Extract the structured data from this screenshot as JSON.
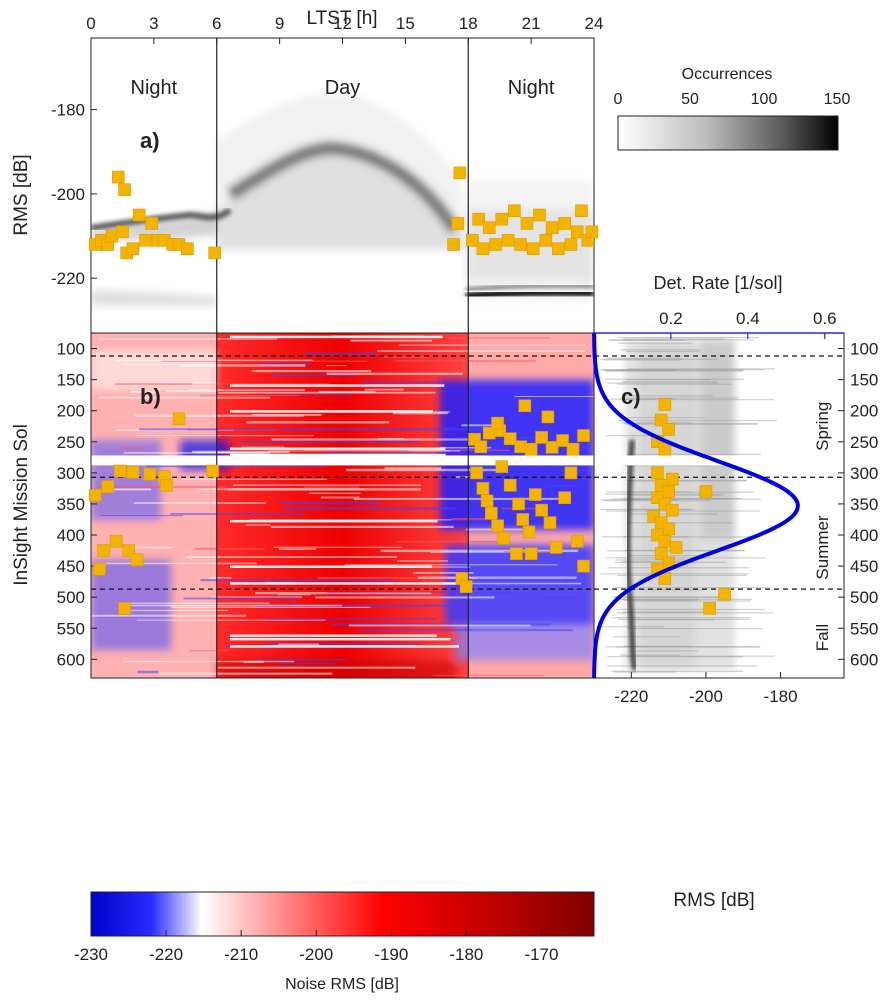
{
  "chart_data": [
    {
      "id": "a",
      "type": "heatmap",
      "panel_label": "a)",
      "xlabel": "LTST [h]",
      "ylabel": "RMS [dB]",
      "xlim": [
        0,
        24
      ],
      "ylim": [
        -233,
        -163
      ],
      "x_ticks": [
        0,
        3,
        6,
        9,
        12,
        15,
        18,
        21,
        24
      ],
      "y_ticks": [
        -180,
        -200,
        -220
      ],
      "region_dividers_h": [
        6,
        18
      ],
      "region_labels": [
        {
          "text": "Night",
          "x": 3
        },
        {
          "text": "Day",
          "x": 12
        },
        {
          "text": "Night",
          "x": 21
        }
      ],
      "event_marker_color": "#f2b400",
      "events": [
        [
          0.2,
          -212
        ],
        [
          0.5,
          -211
        ],
        [
          0.8,
          -212
        ],
        [
          1.0,
          -210
        ],
        [
          1.3,
          -196
        ],
        [
          1.5,
          -209
        ],
        [
          1.6,
          -199
        ],
        [
          1.7,
          -214
        ],
        [
          2.0,
          -213
        ],
        [
          2.3,
          -205
        ],
        [
          2.6,
          -211
        ],
        [
          2.9,
          -207
        ],
        [
          3.2,
          -211
        ],
        [
          3.5,
          -211
        ],
        [
          3.9,
          -212
        ],
        [
          4.2,
          -212
        ],
        [
          4.6,
          -213
        ],
        [
          5.9,
          -214
        ],
        [
          17.3,
          -212
        ],
        [
          17.5,
          -207
        ],
        [
          17.6,
          -195
        ],
        [
          18.2,
          -211
        ],
        [
          18.5,
          -206
        ],
        [
          18.7,
          -213
        ],
        [
          19.0,
          -208
        ],
        [
          19.3,
          -212
        ],
        [
          19.6,
          -206
        ],
        [
          19.9,
          -211
        ],
        [
          20.2,
          -204
        ],
        [
          20.5,
          -212
        ],
        [
          20.8,
          -207
        ],
        [
          21.1,
          -213
        ],
        [
          21.4,
          -205
        ],
        [
          21.7,
          -211
        ],
        [
          22.0,
          -208
        ],
        [
          22.3,
          -213
        ],
        [
          22.6,
          -207
        ],
        [
          22.9,
          -212
        ],
        [
          23.2,
          -209
        ],
        [
          23.4,
          -204
        ],
        [
          23.7,
          -211
        ],
        [
          23.9,
          -209
        ]
      ]
    },
    {
      "id": "b",
      "type": "heatmap",
      "panel_label": "b)",
      "ylabel": "InSight Mission Sol",
      "xlim": [
        0,
        24
      ],
      "ylim": [
        75,
        630
      ],
      "y_ticks": [
        100,
        150,
        200,
        250,
        300,
        350,
        400,
        450,
        500,
        550,
        600
      ],
      "season_boundaries": [
        112,
        307,
        487
      ],
      "data_gap": [
        272,
        288
      ],
      "colorbar": {
        "label": "Noise RMS [dB]",
        "range": [
          -230,
          -163
        ],
        "ticks": [
          -230,
          -220,
          -210,
          -200,
          -190,
          -180,
          -170
        ],
        "colors": [
          "#0000cc",
          "#2a2aff",
          "#ffffff",
          "#ff9a9a",
          "#ff0000",
          "#c00000",
          "#800000"
        ]
      },
      "events": [
        [
          4.2,
          213
        ],
        [
          1.4,
          297
        ],
        [
          2.0,
          299
        ],
        [
          2.8,
          302
        ],
        [
          3.5,
          306
        ],
        [
          5.8,
          297
        ],
        [
          0.8,
          322
        ],
        [
          0.2,
          336
        ],
        [
          3.6,
          320
        ],
        [
          1.2,
          410
        ],
        [
          0.6,
          425
        ],
        [
          1.8,
          425
        ],
        [
          2.2,
          440
        ],
        [
          0.4,
          455
        ],
        [
          1.6,
          518
        ],
        [
          17.7,
          470
        ],
        [
          17.9,
          483
        ],
        [
          18.3,
          246
        ],
        [
          18.6,
          258
        ],
        [
          19.0,
          236
        ],
        [
          19.5,
          232
        ],
        [
          20.0,
          245
        ],
        [
          20.5,
          258
        ],
        [
          21.0,
          262
        ],
        [
          21.5,
          243
        ],
        [
          22.0,
          259
        ],
        [
          22.5,
          248
        ],
        [
          23.0,
          262
        ],
        [
          23.5,
          240
        ],
        [
          20.7,
          192
        ],
        [
          19.4,
          220
        ],
        [
          21.8,
          210
        ],
        [
          18.4,
          300
        ],
        [
          18.7,
          325
        ],
        [
          18.9,
          345
        ],
        [
          19.1,
          365
        ],
        [
          19.4,
          385
        ],
        [
          19.7,
          405
        ],
        [
          20.0,
          320
        ],
        [
          20.4,
          350
        ],
        [
          20.6,
          375
        ],
        [
          20.9,
          395
        ],
        [
          21.2,
          335
        ],
        [
          21.5,
          360
        ],
        [
          21.9,
          380
        ],
        [
          22.2,
          420
        ],
        [
          22.6,
          340
        ],
        [
          22.9,
          300
        ],
        [
          23.2,
          410
        ],
        [
          23.5,
          450
        ],
        [
          20.3,
          430
        ],
        [
          21.0,
          430
        ],
        [
          19.6,
          290
        ]
      ]
    },
    {
      "id": "c",
      "type": "line",
      "panel_label": "c)",
      "xlabel": "RMS [dB]",
      "x_ticks": [
        -220,
        -200,
        -180
      ],
      "xlim": [
        -230,
        -163
      ],
      "top_axis": {
        "label": "Det. Rate [1/sol]",
        "ticks": [
          0.2,
          0.4,
          0.6
        ],
        "range": [
          0,
          0.65
        ],
        "color": "#0000e6"
      },
      "ylim": [
        75,
        630
      ],
      "seasons": [
        {
          "name": "Spring",
          "sol": 225
        },
        {
          "name": "Summer",
          "sol": 420
        },
        {
          "name": "Fall",
          "sol": 565
        }
      ],
      "series": [
        {
          "type": "gaussian",
          "peak_rate": 0.53,
          "center_sol": 353,
          "sigma_sol": 72
        }
      ],
      "events": [
        [
          -211,
          190
        ],
        [
          -212,
          215
        ],
        [
          -210,
          230
        ],
        [
          -213,
          250
        ],
        [
          -211,
          262
        ],
        [
          -213,
          300
        ],
        [
          -209,
          310
        ],
        [
          -212,
          320
        ],
        [
          -210,
          330
        ],
        [
          -213,
          340
        ],
        [
          -211,
          350
        ],
        [
          -209,
          360
        ],
        [
          -214,
          370
        ],
        [
          -212,
          380
        ],
        [
          -210,
          390
        ],
        [
          -213,
          400
        ],
        [
          -211,
          410
        ],
        [
          -208,
          420
        ],
        [
          -212,
          430
        ],
        [
          -210,
          445
        ],
        [
          -213,
          455
        ],
        [
          -211,
          470
        ],
        [
          -200,
          330
        ],
        [
          -195,
          495
        ],
        [
          -199,
          518
        ]
      ]
    }
  ]
}
